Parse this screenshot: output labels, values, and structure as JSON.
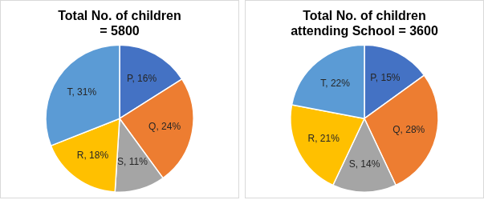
{
  "chart_data": [
    {
      "type": "pie",
      "title": [
        "Total No. of children",
        "= 5800"
      ],
      "categories": [
        "P",
        "Q",
        "S",
        "R",
        "T"
      ],
      "values": [
        16,
        24,
        11,
        18,
        31
      ],
      "value_labels": [
        "P, 16%",
        "Q, 24%",
        "S, 11%",
        "R, 18%",
        "T, 31%"
      ],
      "colors": [
        "#4472c4",
        "#ed7d31",
        "#a5a5a5",
        "#ffc000",
        "#5b9bd5"
      ],
      "data_labels": true
    },
    {
      "type": "pie",
      "title": [
        "Total No. of children",
        "attending School = 3600"
      ],
      "categories": [
        "P",
        "Q",
        "S",
        "R",
        "T"
      ],
      "values": [
        15,
        28,
        14,
        21,
        22
      ],
      "value_labels": [
        "P, 15%",
        "Q, 28%",
        "S, 14%",
        "R, 21%",
        "T, 22%"
      ],
      "colors": [
        "#4472c4",
        "#ed7d31",
        "#a5a5a5",
        "#ffc000",
        "#5b9bd5"
      ],
      "data_labels": true
    }
  ]
}
